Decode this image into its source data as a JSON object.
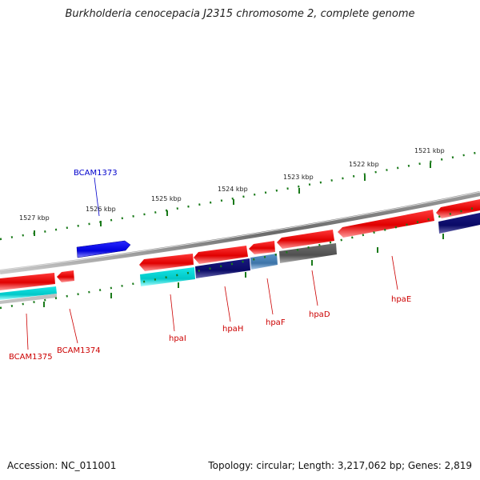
{
  "title": "Burkholderia cenocepacia J2315 chromosome 2, complete genome",
  "ticks": [
    {
      "label": "1527 kbp"
    },
    {
      "label": "1526 kbp"
    },
    {
      "label": "1525 kbp"
    },
    {
      "label": "1524 kbp"
    },
    {
      "label": "1523 kbp"
    },
    {
      "label": "1522 kbp"
    },
    {
      "label": "1521 kbp"
    }
  ],
  "genes": [
    {
      "label": "BCAM1373",
      "color": "#0000cc"
    },
    {
      "label": "BCAM1374",
      "color": "#cc0000"
    },
    {
      "label": "BCAM1375",
      "color": "#cc0000"
    },
    {
      "label": "hpaI",
      "color": "#cc0000"
    },
    {
      "label": "hpaH",
      "color": "#cc0000"
    },
    {
      "label": "hpaF",
      "color": "#cc0000"
    },
    {
      "label": "hpaD",
      "color": "#cc0000"
    },
    {
      "label": "hpaE",
      "color": "#cc0000"
    }
  ],
  "legend_colors": {
    "cds": "#ee0000",
    "plus_strand": "#0000ee",
    "cog_cyan": "#00d8d8",
    "cog_navy": "#0a0a6e",
    "cog_steel": "#4682b4",
    "cog_gray": "#5a5a5a"
  },
  "footer": {
    "accession": "Accession: NC_011001",
    "summary": "Topology: circular; Length: 3,217,062 bp; Genes: 2,819"
  }
}
